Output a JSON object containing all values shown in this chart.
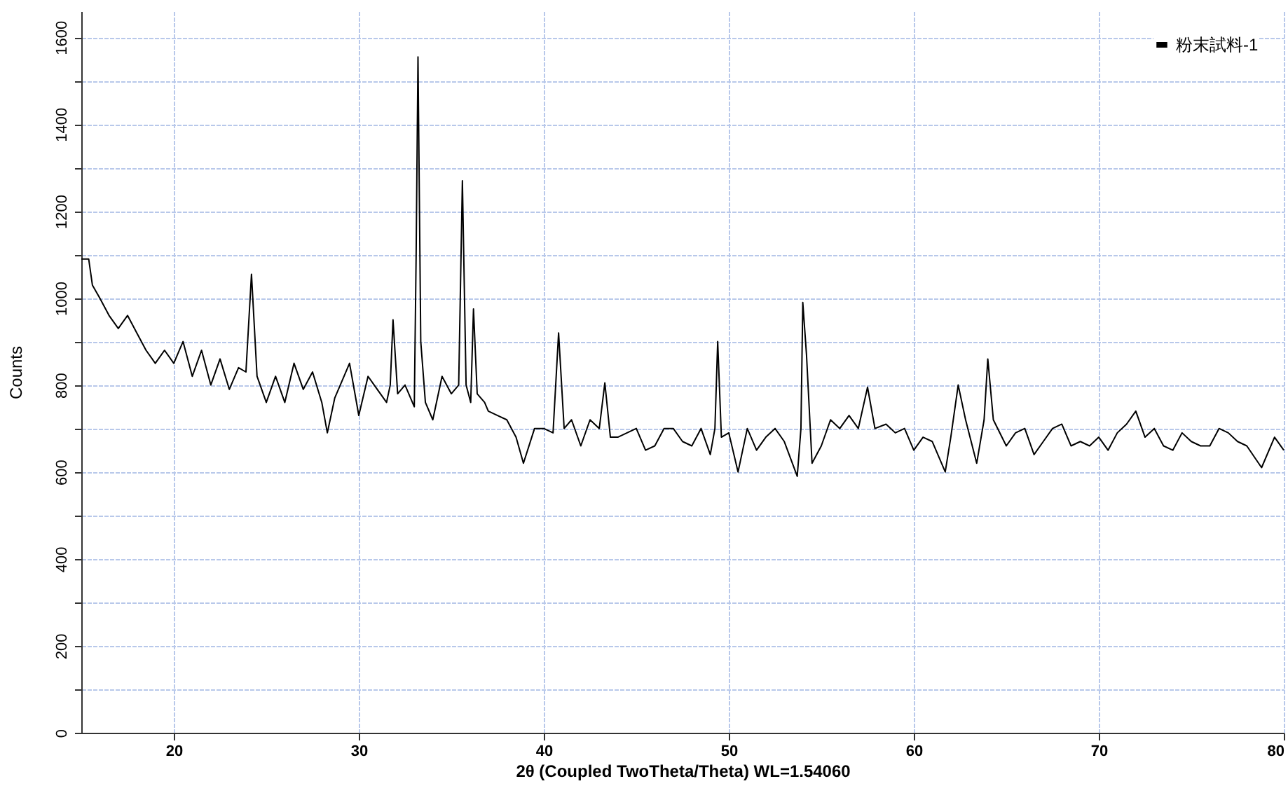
{
  "chart_data": {
    "type": "line",
    "xlabel": "2θ (Coupled TwoTheta/Theta) WL=1.54060",
    "ylabel": "Counts",
    "xlim": [
      15,
      80
    ],
    "ylim": [
      0,
      1660
    ],
    "xticks": [
      20,
      30,
      40,
      50,
      60,
      70,
      80
    ],
    "yticks": [
      0,
      {
        "value": 100,
        "label": null
      },
      200,
      {
        "value": 300,
        "label": null
      },
      400,
      {
        "value": 500,
        "label": null
      },
      600,
      {
        "value": 700,
        "label": null
      },
      800,
      {
        "value": 900,
        "label": null
      },
      1000,
      {
        "value": 1100,
        "label": null
      },
      1200,
      {
        "value": 1300,
        "label": null
      },
      1400,
      {
        "value": 1500,
        "label": null
      },
      1600
    ],
    "grid": true,
    "legend": "top right",
    "line_style": "solid",
    "marker": "none",
    "series": [
      {
        "name": "粉末試料-1",
        "color": "#000000",
        "x": [
          15,
          15.4,
          15.6,
          16,
          16.5,
          17,
          17.5,
          18,
          18.5,
          19,
          19.5,
          20,
          20.5,
          21,
          21.5,
          22,
          22.5,
          23,
          23.5,
          23.9,
          24.2,
          24.5,
          25,
          25.5,
          26,
          26.5,
          27,
          27.5,
          28,
          28.3,
          28.7,
          29,
          29.5,
          30,
          30.5,
          31,
          31.5,
          31.7,
          31.85,
          32.1,
          32.5,
          33,
          33.1,
          33.2,
          33.35,
          33.6,
          34,
          34.5,
          35,
          35.4,
          35.6,
          35.8,
          36.05,
          36.2,
          36.4,
          36.8,
          37,
          37.5,
          38,
          38.5,
          38.9,
          39.5,
          40,
          40.5,
          40.8,
          41.1,
          41.5,
          42,
          42.5,
          43,
          43.3,
          43.6,
          44,
          45,
          45.5,
          46,
          46.5,
          47,
          47.5,
          48,
          48.5,
          49,
          49.25,
          49.4,
          49.6,
          50,
          50.5,
          51,
          51.5,
          52,
          52.5,
          53,
          53.7,
          53.9,
          54,
          54.2,
          54.5,
          55,
          55.5,
          56,
          56.5,
          57,
          57.5,
          57.9,
          58.5,
          59,
          59.5,
          60,
          60.5,
          61,
          61.7,
          62,
          62.4,
          62.8,
          63.4,
          63.8,
          64,
          64.3,
          65,
          65.5,
          66,
          66.5,
          67,
          67.5,
          68,
          68.5,
          69,
          69.5,
          70,
          70.5,
          71,
          71.5,
          72,
          72.5,
          73,
          73.5,
          74,
          74.5,
          75,
          75.5,
          76,
          76.5,
          77,
          77.5,
          78,
          78.8,
          79.5,
          80
        ],
        "values": [
          1090,
          1090,
          1030,
          1000,
          960,
          930,
          960,
          920,
          880,
          850,
          880,
          850,
          900,
          820,
          880,
          800,
          860,
          790,
          840,
          830,
          1055,
          820,
          760,
          820,
          760,
          850,
          790,
          830,
          760,
          690,
          770,
          800,
          850,
          730,
          820,
          790,
          760,
          800,
          950,
          780,
          800,
          750,
          1100,
          1555,
          900,
          760,
          720,
          820,
          780,
          800,
          1270,
          800,
          760,
          975,
          780,
          760,
          740,
          730,
          720,
          680,
          620,
          700,
          700,
          690,
          920,
          700,
          720,
          660,
          720,
          700,
          805,
          680,
          680,
          700,
          650,
          660,
          700,
          700,
          670,
          660,
          700,
          640,
          700,
          900,
          680,
          690,
          600,
          700,
          650,
          680,
          700,
          670,
          590,
          700,
          990,
          870,
          620,
          660,
          720,
          700,
          730,
          700,
          795,
          700,
          710,
          690,
          700,
          650,
          680,
          670,
          600,
          680,
          800,
          720,
          620,
          720,
          860,
          720,
          660,
          690,
          700,
          640,
          670,
          700,
          710,
          660,
          670,
          660,
          680,
          650,
          690,
          710,
          740,
          680,
          700,
          660,
          650,
          690,
          670,
          660,
          660,
          700,
          690,
          670,
          660,
          610,
          680,
          650
        ]
      }
    ]
  }
}
